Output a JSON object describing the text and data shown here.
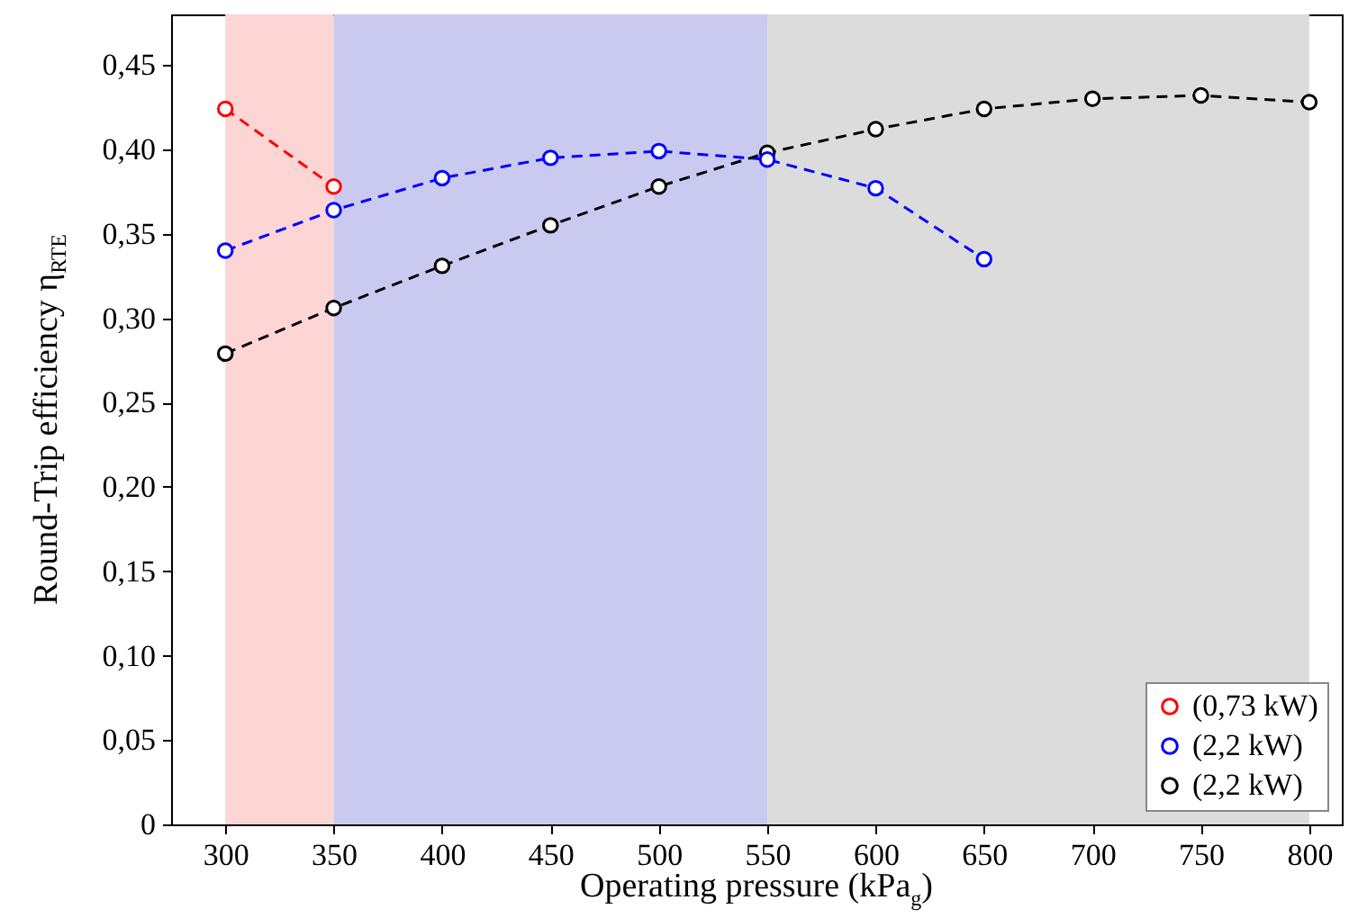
{
  "chart_data": {
    "type": "line",
    "xlabel": "Operating pressure (kPa$_{g}$)",
    "ylabel": "Round-Trip efficiency η$_{RTE}$",
    "series": [
      {
        "name": "(0,73 kW)",
        "color": "#ff0000",
        "x": [
          300,
          350
        ],
        "values": [
          0.424,
          0.378
        ]
      },
      {
        "name": "(2,2 kW)",
        "color": "#0000ff",
        "x": [
          300,
          350,
          400,
          450,
          500,
          550,
          600,
          650
        ],
        "values": [
          0.34,
          0.364,
          0.383,
          0.395,
          0.399,
          0.394,
          0.377,
          0.335
        ]
      },
      {
        "name": "(2,2 kW)",
        "color": "#000000",
        "x": [
          300,
          350,
          400,
          450,
          500,
          550,
          600,
          650,
          700,
          750,
          800
        ],
        "values": [
          0.279,
          0.306,
          0.331,
          0.355,
          0.378,
          0.398,
          0.412,
          0.424,
          0.43,
          0.432,
          0.428
        ]
      }
    ],
    "bands": [
      {
        "axis": "x",
        "from": 300,
        "to": 350,
        "color": "#fdd5d5"
      },
      {
        "axis": "x",
        "from": 350,
        "to": 550,
        "color": "#cacaf0"
      },
      {
        "axis": "x",
        "from": 550,
        "to": 800,
        "color": "#dcdcdc"
      }
    ],
    "xlim": [
      275,
      815
    ],
    "xticks": [
      300,
      350,
      400,
      450,
      500,
      550,
      600,
      650,
      700,
      750,
      800
    ],
    "ylim": [
      0,
      0.48
    ],
    "yticks": [
      {
        "value": 0,
        "label": "0"
      },
      {
        "value": 0.05,
        "label": "0,05"
      },
      {
        "value": 0.1,
        "label": "0,10"
      },
      {
        "value": 0.15,
        "label": "0,15"
      },
      {
        "value": 0.2,
        "label": "0,20"
      },
      {
        "value": 0.25,
        "label": "0,25"
      },
      {
        "value": 0.3,
        "label": "0,30"
      },
      {
        "value": 0.35,
        "label": "0,35"
      },
      {
        "value": 0.4,
        "label": "0,40"
      },
      {
        "value": 0.45,
        "label": "0,45"
      }
    ],
    "grid": false,
    "legend": "bottom right",
    "marker": "circle",
    "line_style": "dashed"
  }
}
